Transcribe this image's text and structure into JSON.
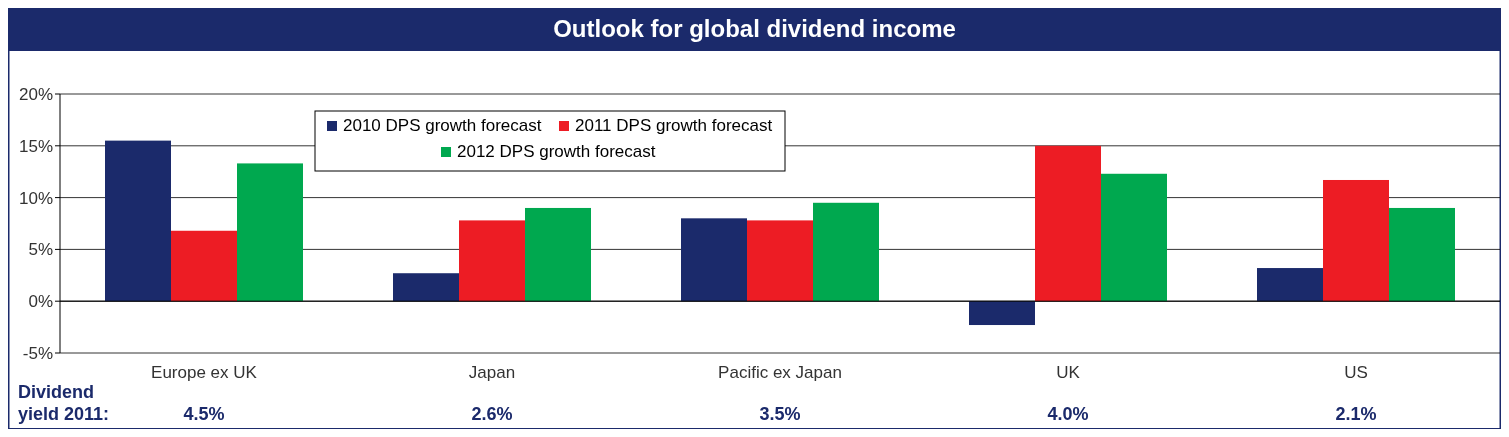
{
  "chart_data": {
    "type": "bar",
    "title": "Outlook for global dividend income",
    "categories": [
      "Europe ex UK",
      "Japan",
      "Pacific ex Japan",
      "UK",
      "US"
    ],
    "series": [
      {
        "name": "2010 DPS growth forecast",
        "color": "#1b2a6b",
        "values": [
          15.5,
          2.7,
          8.0,
          -2.3,
          3.2
        ]
      },
      {
        "name": "2011 DPS growth forecast",
        "color": "#ed1c24",
        "values": [
          6.8,
          7.8,
          7.8,
          15.0,
          11.7
        ]
      },
      {
        "name": "2012 DPS growth forecast",
        "color": "#00a84f",
        "values": [
          13.3,
          9.0,
          9.5,
          12.3,
          9.0
        ]
      }
    ],
    "ylim": [
      -5,
      20
    ],
    "yticks": [
      {
        "value": -5,
        "label": "-5%"
      },
      {
        "value": 0,
        "label": "0%"
      },
      {
        "value": 5,
        "label": "5%"
      },
      {
        "value": 10,
        "label": "10%"
      },
      {
        "value": 15,
        "label": "15%"
      },
      {
        "value": 20,
        "label": "20%"
      }
    ],
    "grid": "y",
    "legend": "top left",
    "annotations": [
      "Dividend\nyield 2011:",
      "4.5%",
      "2.6%",
      "3.5%",
      "4.0%",
      "2.1%"
    ]
  }
}
